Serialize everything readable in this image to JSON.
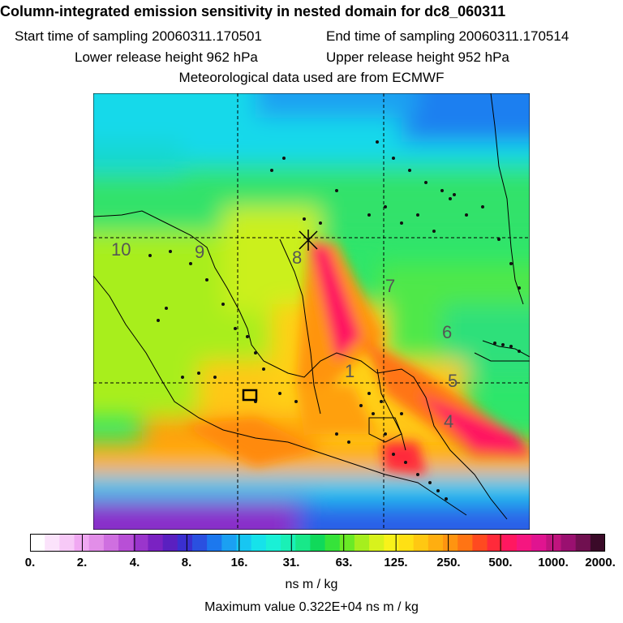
{
  "title": "Column-integrated emission sensitivity in nested domain for dc8_060311",
  "sampling": {
    "start": "Start time of sampling 20060311.170501",
    "end": "End time of sampling 20060311.170514"
  },
  "release": {
    "lower": "Lower release height  962 hPa",
    "upper": "Upper release height  952 hPa"
  },
  "met_source": "Meteorological data used are from ECMWF",
  "map": {
    "age_labels": [
      "1",
      "4",
      "5",
      "6",
      "7",
      "8",
      "9",
      "10"
    ]
  },
  "colorbar": {
    "ticks": [
      "0.",
      "2.",
      "4.",
      "8.",
      "16.",
      "31.",
      "63.",
      "125.",
      "250.",
      "500.",
      "1000.",
      "2000."
    ],
    "unit": "ns m / kg",
    "colors": [
      "#ffffff",
      "#fbe3fb",
      "#f7c9f7",
      "#f0a8f2",
      "#e28ee8",
      "#cf6fe0",
      "#b84fd6",
      "#9a35cc",
      "#7a22c2",
      "#5a20c0",
      "#3a2fd0",
      "#2a50e0",
      "#1c78ee",
      "#1ba0f2",
      "#17c6f2",
      "#16e2ea",
      "#1af0d6",
      "#1af0b6",
      "#18e889",
      "#10d95a",
      "#36e33a",
      "#6aea26",
      "#a6ee1e",
      "#d8f21c",
      "#f8f21a",
      "#ffe014",
      "#ffc812",
      "#ffae10",
      "#ff9410",
      "#ff7414",
      "#ff4a20",
      "#ff2a3a",
      "#ff1860",
      "#f51680",
      "#e01490",
      "#c0147e",
      "#9a1070",
      "#701050",
      "#3a0a28"
    ]
  },
  "max_value": "Maximum value  0.322E+04 ns m / kg"
}
